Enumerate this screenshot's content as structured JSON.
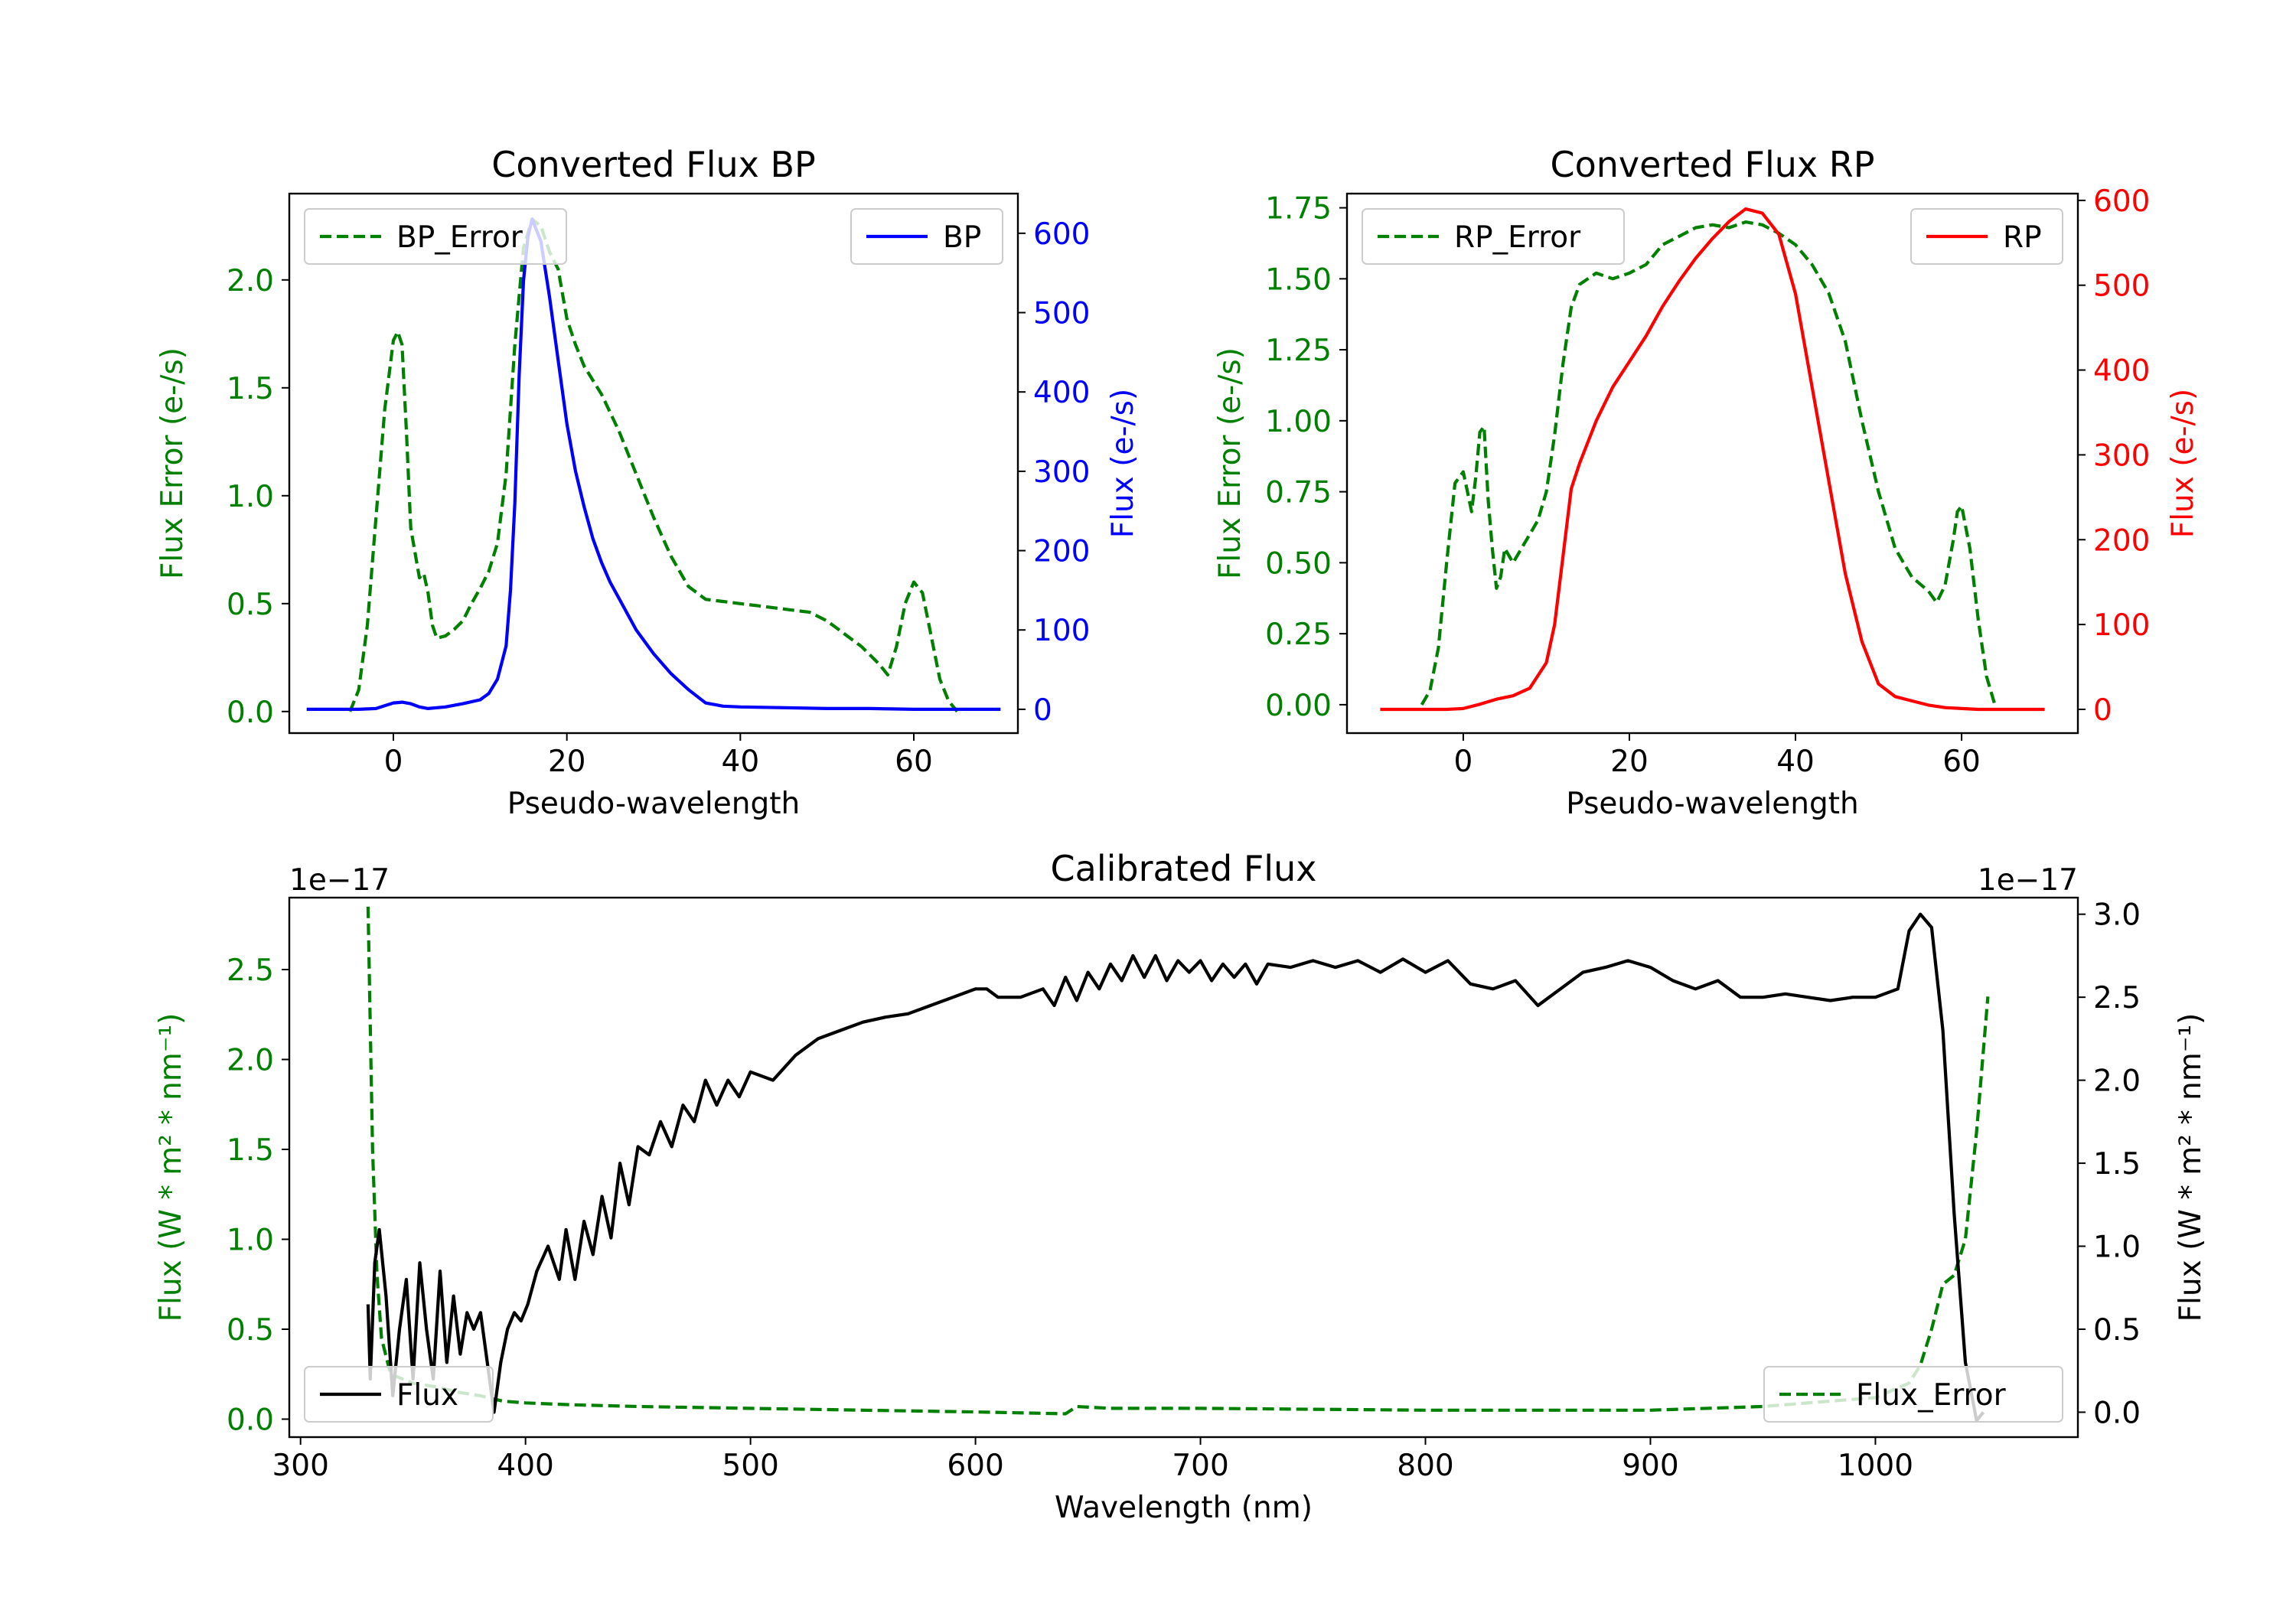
{
  "colors": {
    "error": "#008000",
    "bp": "#0000ff",
    "rp": "#ff0000",
    "flux": "#000000"
  },
  "chart_data": [
    {
      "type": "line",
      "title": "Converted Flux BP",
      "xlabel": "Pseudo-wavelength",
      "ylabel_left": "Flux Error (e-/s)",
      "ylabel_right": "Flux (e-/s)",
      "xlim": [
        -12,
        72
      ],
      "ylim_left": [
        -0.1,
        2.4
      ],
      "ylim_right": [
        -30,
        650
      ],
      "xticks": [
        0,
        20,
        40,
        60
      ],
      "yticks_left": [
        "0.0",
        "0.5",
        "1.0",
        "1.5",
        "2.0"
      ],
      "yticks_right": [
        "0",
        "100",
        "200",
        "300",
        "400",
        "500",
        "600"
      ],
      "series": [
        {
          "name": "BP_Error",
          "axis": "left",
          "style": "dashed",
          "color_key": "error",
          "x": [
            -5,
            -4,
            -3,
            -2,
            -1,
            0,
            0.5,
            1,
            1.5,
            2,
            3,
            3.5,
            4,
            4.5,
            5,
            6,
            7,
            8,
            9,
            10,
            11,
            12,
            13,
            14,
            15,
            16,
            17,
            18,
            19,
            20,
            21,
            22,
            24,
            26,
            28,
            30,
            32,
            34,
            36,
            38,
            40,
            42,
            44,
            46,
            48,
            50,
            52,
            54,
            56,
            57,
            58,
            59,
            60,
            61,
            62,
            63,
            64,
            65
          ],
          "y": [
            0,
            0.1,
            0.4,
            0.9,
            1.4,
            1.72,
            1.76,
            1.7,
            1.3,
            0.85,
            0.62,
            0.64,
            0.55,
            0.4,
            0.34,
            0.35,
            0.38,
            0.42,
            0.5,
            0.57,
            0.65,
            0.78,
            1.1,
            1.7,
            2.15,
            2.28,
            2.25,
            2.13,
            2.05,
            1.82,
            1.7,
            1.6,
            1.47,
            1.3,
            1.1,
            0.9,
            0.72,
            0.58,
            0.52,
            0.51,
            0.5,
            0.49,
            0.48,
            0.47,
            0.46,
            0.42,
            0.36,
            0.3,
            0.22,
            0.17,
            0.3,
            0.5,
            0.6,
            0.55,
            0.35,
            0.15,
            0.05,
            0
          ]
        },
        {
          "name": "BP",
          "axis": "right",
          "style": "solid",
          "color_key": "bp",
          "x": [
            -10,
            -6,
            -4,
            -2,
            0,
            1,
            2,
            3,
            4,
            6,
            8,
            10,
            11,
            12,
            13,
            13.5,
            14,
            14.5,
            15,
            15.5,
            16,
            17,
            18,
            19,
            20,
            21,
            22,
            23,
            24,
            25,
            26,
            27,
            28,
            30,
            32,
            34,
            36,
            38,
            40,
            45,
            50,
            55,
            60,
            65,
            70
          ],
          "y": [
            0,
            0,
            0,
            1,
            8,
            9,
            7,
            3,
            1,
            3,
            7,
            12,
            20,
            38,
            80,
            150,
            260,
            420,
            540,
            595,
            618,
            590,
            520,
            440,
            360,
            300,
            255,
            215,
            185,
            160,
            140,
            120,
            100,
            70,
            45,
            25,
            8,
            4,
            3,
            2,
            1,
            1,
            0,
            0,
            0
          ]
        }
      ],
      "legend": [
        {
          "label": "BP_Error",
          "loc": "upper left"
        },
        {
          "label": "BP",
          "loc": "upper right"
        }
      ]
    },
    {
      "type": "line",
      "title": "Converted Flux RP",
      "xlabel": "Pseudo-wavelength",
      "ylabel_left": "Flux Error (e-/s)",
      "ylabel_right": "Flux (e-/s)",
      "xlim": [
        -14,
        74
      ],
      "ylim_left": [
        -0.1,
        1.8
      ],
      "ylim_right": [
        -28,
        608
      ],
      "xticks": [
        0,
        20,
        40,
        60
      ],
      "yticks_left": [
        "0.00",
        "0.25",
        "0.50",
        "0.75",
        "1.00",
        "1.25",
        "1.50",
        "1.75"
      ],
      "yticks_right": [
        "0",
        "100",
        "200",
        "300",
        "400",
        "500",
        "600"
      ],
      "series": [
        {
          "name": "RP_Error",
          "axis": "left",
          "style": "dashed",
          "color_key": "error",
          "x": [
            -5,
            -4,
            -3,
            -2,
            -1,
            0,
            0.5,
            1,
            1.5,
            2,
            2.5,
            3,
            3.5,
            4,
            4.5,
            5,
            6,
            7,
            8,
            9,
            10,
            11,
            12,
            13,
            14,
            15,
            16,
            17,
            18,
            20,
            22,
            24,
            26,
            28,
            30,
            32,
            34,
            36,
            38,
            40,
            42,
            44,
            46,
            48,
            50,
            52,
            54,
            56,
            57,
            58,
            59,
            59.5,
            60,
            61,
            62,
            63,
            64
          ],
          "y": [
            0,
            0.05,
            0.2,
            0.5,
            0.78,
            0.82,
            0.75,
            0.68,
            0.8,
            0.96,
            0.98,
            0.72,
            0.55,
            0.41,
            0.45,
            0.55,
            0.5,
            0.55,
            0.6,
            0.65,
            0.75,
            0.95,
            1.2,
            1.4,
            1.48,
            1.5,
            1.52,
            1.51,
            1.5,
            1.52,
            1.55,
            1.62,
            1.65,
            1.68,
            1.69,
            1.68,
            1.7,
            1.69,
            1.66,
            1.62,
            1.55,
            1.45,
            1.28,
            1.0,
            0.75,
            0.55,
            0.45,
            0.4,
            0.36,
            0.42,
            0.58,
            0.68,
            0.7,
            0.55,
            0.3,
            0.1,
            0
          ]
        },
        {
          "name": "RP",
          "axis": "right",
          "style": "solid",
          "color_key": "rp",
          "x": [
            -10,
            -4,
            -2,
            0,
            2,
            4,
            6,
            8,
            10,
            11,
            12,
            13,
            14,
            16,
            18,
            20,
            22,
            24,
            26,
            28,
            30,
            32,
            34,
            36,
            38,
            40,
            42,
            44,
            46,
            48,
            50,
            52,
            54,
            56,
            58,
            60,
            62,
            65,
            70
          ],
          "y": [
            0,
            0,
            0,
            1,
            6,
            12,
            16,
            25,
            55,
            100,
            180,
            260,
            290,
            340,
            380,
            410,
            440,
            475,
            505,
            532,
            555,
            575,
            590,
            585,
            560,
            490,
            380,
            270,
            160,
            80,
            30,
            15,
            10,
            5,
            2,
            1,
            0,
            0,
            0
          ]
        }
      ],
      "legend": [
        {
          "label": "RP_Error",
          "loc": "upper left"
        },
        {
          "label": "RP",
          "loc": "upper right"
        }
      ]
    },
    {
      "type": "line",
      "title": "Calibrated Flux",
      "xlabel": "Wavelength (nm)",
      "ylabel_left": "Flux (W * m² * nm⁻¹)",
      "ylabel_right": "Flux (W * m² * nm⁻¹)",
      "offset_text_left": "1e−17",
      "offset_text_right": "1e−17",
      "xlim": [
        295,
        1090
      ],
      "ylim_left": [
        -0.1,
        2.9
      ],
      "ylim_right": [
        -0.15,
        3.1
      ],
      "xticks": [
        300,
        400,
        500,
        600,
        700,
        800,
        900,
        1000
      ],
      "yticks_left": [
        "0.0",
        "0.5",
        "1.0",
        "1.5",
        "2.0",
        "2.5"
      ],
      "yticks_right": [
        "0.0",
        "0.5",
        "1.0",
        "1.5",
        "2.0",
        "2.5",
        "3.0"
      ],
      "series": [
        {
          "name": "Flux_Error",
          "axis": "left",
          "style": "dashed",
          "color_key": "error",
          "x": [
            330,
            332,
            334,
            336,
            340,
            350,
            360,
            370,
            380,
            390,
            400,
            420,
            450,
            500,
            550,
            600,
            640,
            645,
            660,
            700,
            800,
            900,
            950,
            1000,
            1015,
            1020,
            1025,
            1030,
            1035,
            1040,
            1045,
            1050
          ],
          "y": [
            2.85,
            1.5,
            0.8,
            0.45,
            0.25,
            0.2,
            0.18,
            0.15,
            0.13,
            0.1,
            0.09,
            0.08,
            0.07,
            0.06,
            0.05,
            0.04,
            0.03,
            0.07,
            0.06,
            0.06,
            0.05,
            0.05,
            0.07,
            0.12,
            0.2,
            0.3,
            0.5,
            0.75,
            0.8,
            1.0,
            1.6,
            2.35
          ]
        },
        {
          "name": "Flux",
          "axis": "right",
          "style": "solid",
          "color_key": "flux",
          "x": [
            330,
            331,
            333,
            335,
            338,
            341,
            344,
            347,
            350,
            353,
            356,
            359,
            362,
            365,
            368,
            371,
            374,
            377,
            380,
            383,
            386,
            389,
            392,
            395,
            398,
            401,
            405,
            410,
            415,
            418,
            422,
            426,
            430,
            434,
            438,
            442,
            446,
            450,
            455,
            460,
            465,
            470,
            475,
            480,
            485,
            490,
            495,
            500,
            510,
            520,
            530,
            540,
            550,
            560,
            570,
            580,
            590,
            600,
            605,
            610,
            620,
            630,
            635,
            640,
            645,
            650,
            655,
            660,
            665,
            670,
            675,
            680,
            685,
            690,
            695,
            700,
            705,
            710,
            715,
            720,
            725,
            730,
            740,
            750,
            760,
            770,
            780,
            790,
            800,
            810,
            820,
            830,
            840,
            850,
            860,
            870,
            880,
            890,
            900,
            910,
            920,
            930,
            940,
            950,
            960,
            970,
            980,
            990,
            1000,
            1010,
            1015,
            1020,
            1025,
            1030,
            1035,
            1040,
            1045,
            1048
          ],
          "y": [
            0.65,
            0.2,
            0.9,
            1.1,
            0.7,
            0.1,
            0.5,
            0.8,
            0.2,
            0.9,
            0.5,
            0.2,
            0.85,
            0.3,
            0.7,
            0.35,
            0.6,
            0.5,
            0.6,
            0.3,
            0.0,
            0.3,
            0.5,
            0.6,
            0.55,
            0.65,
            0.85,
            1.0,
            0.8,
            1.1,
            0.8,
            1.15,
            0.95,
            1.3,
            1.05,
            1.5,
            1.25,
            1.6,
            1.55,
            1.75,
            1.6,
            1.85,
            1.75,
            2.0,
            1.85,
            2.0,
            1.9,
            2.05,
            2.0,
            2.15,
            2.25,
            2.3,
            2.35,
            2.38,
            2.4,
            2.45,
            2.5,
            2.55,
            2.55,
            2.5,
            2.5,
            2.55,
            2.45,
            2.62,
            2.48,
            2.65,
            2.55,
            2.7,
            2.6,
            2.75,
            2.62,
            2.75,
            2.6,
            2.72,
            2.65,
            2.72,
            2.6,
            2.7,
            2.62,
            2.7,
            2.58,
            2.7,
            2.68,
            2.72,
            2.68,
            2.72,
            2.65,
            2.73,
            2.65,
            2.72,
            2.58,
            2.55,
            2.6,
            2.45,
            2.55,
            2.65,
            2.68,
            2.72,
            2.68,
            2.6,
            2.55,
            2.6,
            2.5,
            2.5,
            2.52,
            2.5,
            2.48,
            2.5,
            2.5,
            2.55,
            2.9,
            3.0,
            2.92,
            2.3,
            1.2,
            0.3,
            -0.05,
            0.0
          ]
        }
      ],
      "legend": [
        {
          "label": "Flux",
          "loc": "lower left"
        },
        {
          "label": "Flux_Error",
          "loc": "lower right"
        }
      ]
    }
  ]
}
